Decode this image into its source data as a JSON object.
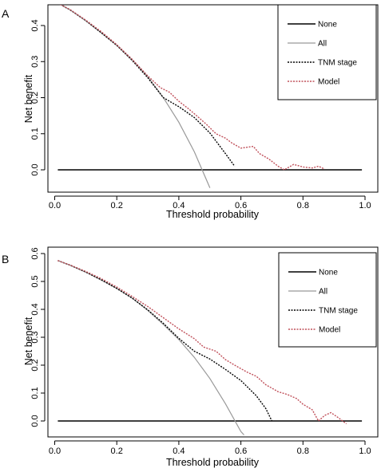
{
  "chart_data": [
    {
      "panel": "A",
      "type": "line",
      "xlabel": "Threshold probability",
      "ylabel": "Net benefit",
      "xlim": [
        0.0,
        1.0
      ],
      "ylim": [
        -0.05,
        0.45
      ],
      "xticks": [
        "0.0",
        "0.2",
        "0.4",
        "0.6",
        "0.8",
        "1.0"
      ],
      "yticks": [
        "0.0",
        "0.1",
        "0.2",
        "0.3",
        "0.4"
      ],
      "legend_position": "top-right",
      "series": [
        {
          "name": "None",
          "color": "#000000",
          "dash": "solid",
          "width": 1.5,
          "x": [
            0.01,
            0.99
          ],
          "y": [
            0.0,
            0.0
          ]
        },
        {
          "name": "All",
          "color": "#999999",
          "dash": "solid",
          "width": 1.2,
          "x": [
            0.01,
            0.05,
            0.1,
            0.15,
            0.2,
            0.25,
            0.3,
            0.35,
            0.4,
            0.45,
            0.5
          ],
          "y": [
            0.462,
            0.443,
            0.413,
            0.38,
            0.345,
            0.305,
            0.258,
            0.2,
            0.132,
            0.05,
            -0.05
          ]
        },
        {
          "name": "TNM stage",
          "color": "#000000",
          "dash": "dotted",
          "width": 1.4,
          "x": [
            0.01,
            0.05,
            0.1,
            0.15,
            0.2,
            0.25,
            0.3,
            0.33,
            0.35,
            0.4,
            0.45,
            0.5,
            0.55,
            0.58
          ],
          "y": [
            0.462,
            0.443,
            0.414,
            0.38,
            0.345,
            0.303,
            0.255,
            0.222,
            0.2,
            0.175,
            0.145,
            0.102,
            0.045,
            0.01
          ]
        },
        {
          "name": "Model",
          "color": "#c0505a",
          "dash": "dotted",
          "width": 1.4,
          "x": [
            0.01,
            0.05,
            0.1,
            0.15,
            0.2,
            0.25,
            0.3,
            0.34,
            0.37,
            0.4,
            0.43,
            0.46,
            0.49,
            0.52,
            0.55,
            0.57,
            0.6,
            0.64,
            0.66,
            0.69,
            0.72,
            0.74,
            0.77,
            0.8,
            0.83,
            0.85,
            0.87
          ],
          "y": [
            0.462,
            0.444,
            0.415,
            0.383,
            0.347,
            0.306,
            0.26,
            0.228,
            0.215,
            0.19,
            0.17,
            0.148,
            0.125,
            0.1,
            0.088,
            0.075,
            0.06,
            0.065,
            0.045,
            0.03,
            0.01,
            0.0,
            0.015,
            0.008,
            0.005,
            0.01,
            0.002
          ]
        }
      ]
    },
    {
      "panel": "B",
      "type": "line",
      "xlabel": "Threshold probability",
      "ylabel": "Net benefit",
      "xlim": [
        0.0,
        1.0
      ],
      "ylim": [
        -0.03,
        0.6
      ],
      "xticks": [
        "0.0",
        "0.2",
        "0.4",
        "0.6",
        "0.8",
        "1.0"
      ],
      "yticks": [
        "0.0",
        "0.1",
        "0.2",
        "0.3",
        "0.4",
        "0.5",
        "0.6"
      ],
      "legend_position": "top-right",
      "series": [
        {
          "name": "None",
          "color": "#000000",
          "dash": "solid",
          "width": 1.5,
          "x": [
            0.01,
            0.99
          ],
          "y": [
            0.0,
            0.0
          ]
        },
        {
          "name": "All",
          "color": "#999999",
          "dash": "solid",
          "width": 1.2,
          "x": [
            0.01,
            0.05,
            0.1,
            0.15,
            0.2,
            0.25,
            0.3,
            0.35,
            0.4,
            0.45,
            0.5,
            0.55,
            0.6,
            0.61
          ],
          "y": [
            0.575,
            0.558,
            0.533,
            0.505,
            0.475,
            0.44,
            0.396,
            0.346,
            0.292,
            0.228,
            0.152,
            0.062,
            -0.038,
            -0.05
          ]
        },
        {
          "name": "TNM stage",
          "color": "#000000",
          "dash": "dotted",
          "width": 1.4,
          "x": [
            0.01,
            0.05,
            0.1,
            0.15,
            0.2,
            0.25,
            0.3,
            0.35,
            0.4,
            0.45,
            0.5,
            0.55,
            0.6,
            0.65,
            0.68,
            0.7
          ],
          "y": [
            0.575,
            0.558,
            0.534,
            0.506,
            0.475,
            0.44,
            0.398,
            0.35,
            0.296,
            0.25,
            0.222,
            0.185,
            0.145,
            0.09,
            0.045,
            0.0
          ]
        },
        {
          "name": "Model",
          "color": "#c0505a",
          "dash": "dotted",
          "width": 1.4,
          "x": [
            0.01,
            0.05,
            0.1,
            0.15,
            0.2,
            0.25,
            0.3,
            0.35,
            0.4,
            0.45,
            0.48,
            0.52,
            0.55,
            0.58,
            0.62,
            0.65,
            0.68,
            0.72,
            0.75,
            0.78,
            0.8,
            0.83,
            0.85,
            0.87,
            0.89,
            0.91,
            0.94
          ],
          "y": [
            0.575,
            0.559,
            0.536,
            0.51,
            0.48,
            0.446,
            0.41,
            0.37,
            0.33,
            0.295,
            0.265,
            0.25,
            0.22,
            0.2,
            0.175,
            0.16,
            0.13,
            0.105,
            0.095,
            0.08,
            0.06,
            0.04,
            0.0,
            0.02,
            0.03,
            0.015,
            -0.01
          ]
        }
      ]
    }
  ]
}
